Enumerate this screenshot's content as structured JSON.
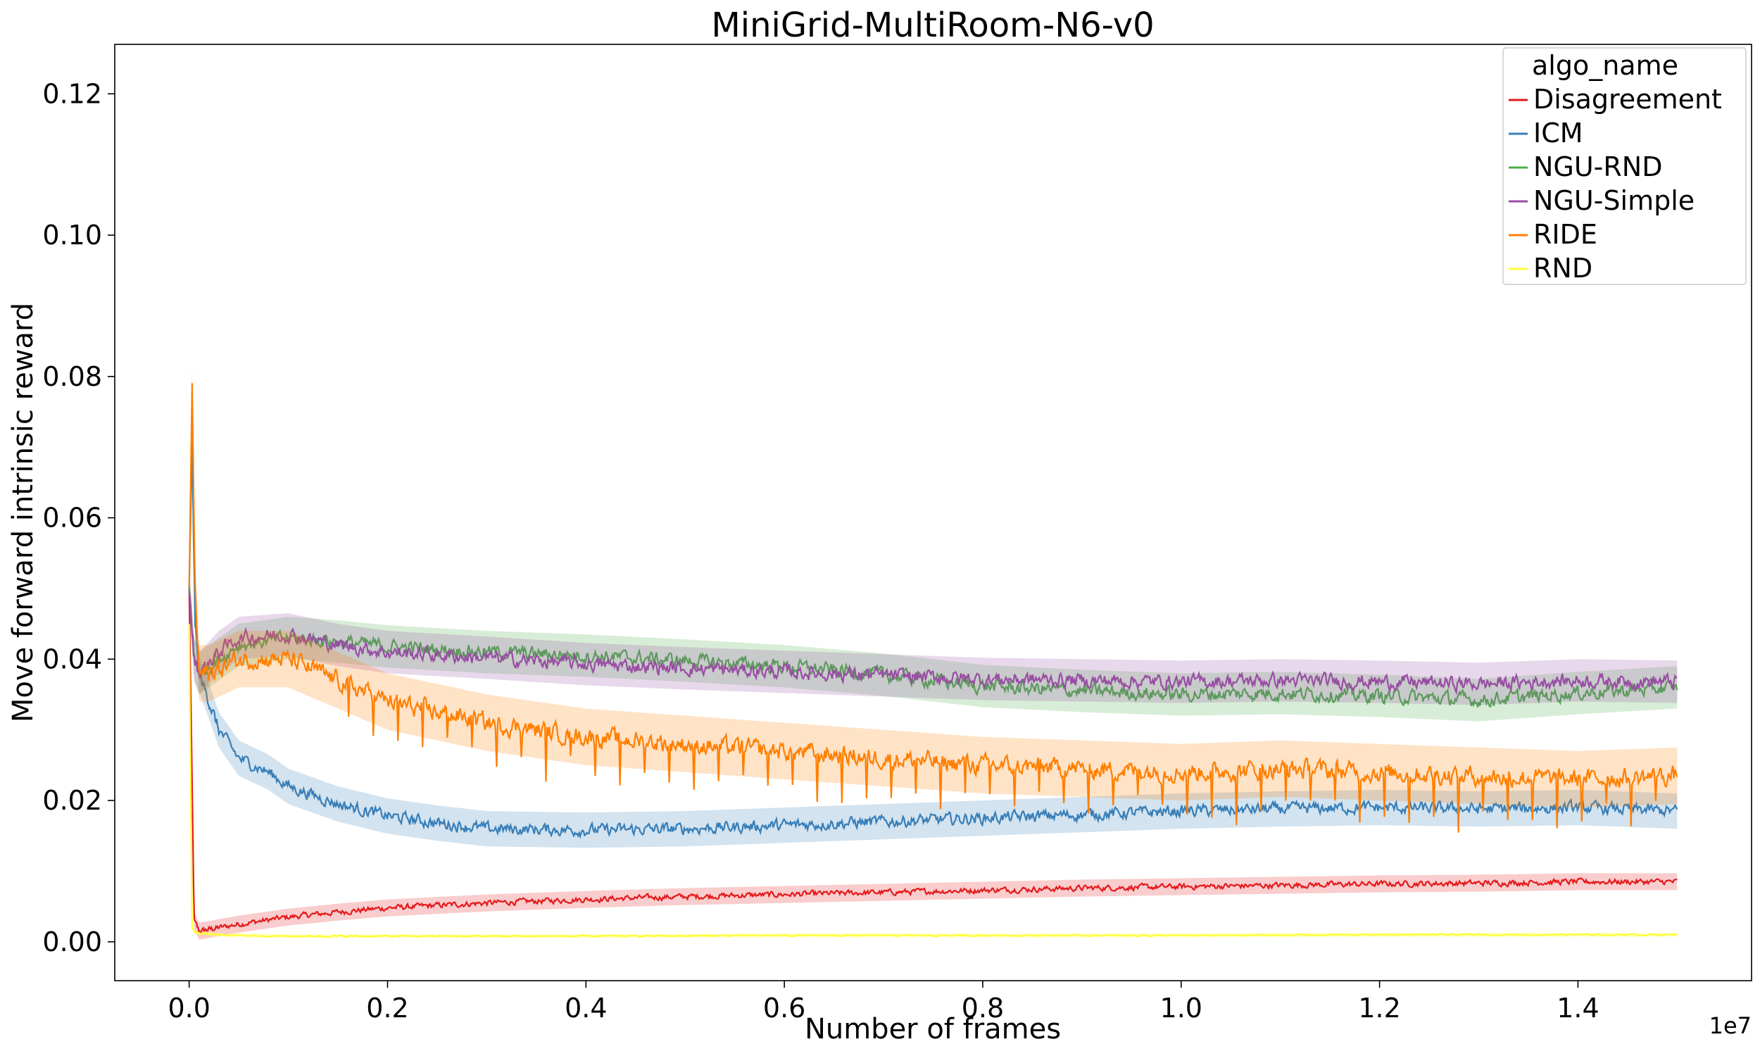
{
  "chart_data": {
    "type": "line",
    "title": "MiniGrid-MultiRoom-N6-v0",
    "xlabel": "Number of frames",
    "ylabel": "Move forward intrinsic reward",
    "x_offset_label": "1e7",
    "xlim": [
      -0.075,
      1.575
    ],
    "ylim": [
      -0.0055,
      0.127
    ],
    "x_ticks": [
      0.0,
      0.2,
      0.4,
      0.6,
      0.8,
      1.0,
      1.2,
      1.4
    ],
    "x_tick_labels": [
      "0.0",
      "0.2",
      "0.4",
      "0.6",
      "0.8",
      "1.0",
      "1.2",
      "1.4"
    ],
    "y_ticks": [
      0.0,
      0.02,
      0.04,
      0.06,
      0.08,
      0.1,
      0.12
    ],
    "y_tick_labels": [
      "0.00",
      "0.02",
      "0.04",
      "0.06",
      "0.08",
      "0.10",
      "0.12"
    ],
    "grid": false,
    "legend": {
      "title": "algo_name",
      "position": "top-right"
    },
    "series": [
      {
        "name": "Disagreement",
        "color": "#e41a1c",
        "x": [
          0.0,
          0.005,
          0.01,
          0.03,
          0.05,
          0.1,
          0.15,
          0.2,
          0.3,
          0.4,
          0.5,
          0.6,
          0.7,
          0.8,
          0.9,
          1.0,
          1.1,
          1.2,
          1.3,
          1.4,
          1.5
        ],
        "y": [
          0.05,
          0.003,
          0.0015,
          0.002,
          0.0025,
          0.0035,
          0.0042,
          0.0048,
          0.0055,
          0.006,
          0.0064,
          0.0067,
          0.007,
          0.0073,
          0.0076,
          0.0078,
          0.008,
          0.0082,
          0.0083,
          0.0085,
          0.0085
        ],
        "band": 0.0012
      },
      {
        "name": "ICM",
        "color": "#377eb8",
        "x": [
          0.0,
          0.003,
          0.006,
          0.01,
          0.03,
          0.05,
          0.08,
          0.1,
          0.15,
          0.2,
          0.25,
          0.3,
          0.4,
          0.5,
          0.6,
          0.7,
          0.8,
          0.9,
          1.0,
          1.1,
          1.2,
          1.3,
          1.4,
          1.5
        ],
        "y": [
          0.05,
          0.07,
          0.045,
          0.038,
          0.03,
          0.026,
          0.024,
          0.022,
          0.0195,
          0.0178,
          0.0168,
          0.016,
          0.0158,
          0.016,
          0.0165,
          0.017,
          0.0175,
          0.018,
          0.0185,
          0.0188,
          0.019,
          0.0188,
          0.019,
          0.0185
        ],
        "band": 0.0025
      },
      {
        "name": "NGU-RND",
        "color": "#4daf4a",
        "x": [
          0.0,
          0.005,
          0.01,
          0.03,
          0.05,
          0.1,
          0.15,
          0.2,
          0.3,
          0.4,
          0.5,
          0.6,
          0.7,
          0.8,
          0.9,
          1.0,
          1.1,
          1.2,
          1.3,
          1.4,
          1.5
        ],
        "y": [
          0.05,
          0.04,
          0.038,
          0.04,
          0.042,
          0.043,
          0.0425,
          0.0418,
          0.041,
          0.0405,
          0.0398,
          0.039,
          0.0378,
          0.0362,
          0.0355,
          0.035,
          0.0352,
          0.0348,
          0.0342,
          0.0352,
          0.036
        ],
        "band": 0.003
      },
      {
        "name": "NGU-Simple",
        "color": "#984ea3",
        "x": [
          0.0,
          0.005,
          0.01,
          0.03,
          0.05,
          0.1,
          0.15,
          0.2,
          0.3,
          0.4,
          0.5,
          0.6,
          0.7,
          0.8,
          0.9,
          1.0,
          1.1,
          1.2,
          1.3,
          1.4,
          1.5
        ],
        "y": [
          0.05,
          0.04,
          0.038,
          0.041,
          0.043,
          0.0435,
          0.042,
          0.041,
          0.0402,
          0.0393,
          0.0387,
          0.0382,
          0.0377,
          0.0372,
          0.037,
          0.0368,
          0.037,
          0.0368,
          0.0365,
          0.037,
          0.0368
        ],
        "band": 0.003
      },
      {
        "name": "RIDE",
        "color": "#ff7f00",
        "x": [
          0.0,
          0.003,
          0.006,
          0.01,
          0.02,
          0.05,
          0.1,
          0.15,
          0.2,
          0.3,
          0.4,
          0.5,
          0.6,
          0.7,
          0.8,
          0.9,
          1.0,
          1.1,
          1.2,
          1.3,
          1.4,
          1.5
        ],
        "y": [
          0.05,
          0.078,
          0.05,
          0.038,
          0.038,
          0.04,
          0.04,
          0.037,
          0.034,
          0.031,
          0.029,
          0.028,
          0.027,
          0.026,
          0.025,
          0.0245,
          0.024,
          0.0245,
          0.024,
          0.0235,
          0.023,
          0.0235
        ],
        "band": 0.004
      },
      {
        "name": "RND",
        "color": "#ffff33",
        "x": [
          0.0,
          0.003,
          0.006,
          0.01,
          0.03,
          0.05,
          0.1,
          0.2,
          0.4,
          0.6,
          0.8,
          1.0,
          1.2,
          1.4,
          1.5
        ],
        "y": [
          0.045,
          0.002,
          0.0013,
          0.0012,
          0.001,
          0.0009,
          0.0008,
          0.0008,
          0.0008,
          0.0009,
          0.0009,
          0.0009,
          0.001,
          0.001,
          0.001
        ],
        "band": 0.0003
      }
    ]
  }
}
